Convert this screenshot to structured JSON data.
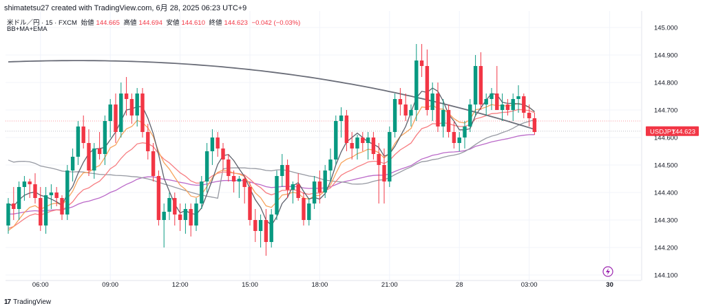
{
  "header": {
    "created_by": "shimatetsu27 created with TradingView.com, 6月 28, 2025 06:23 UTC+9"
  },
  "legend": {
    "symbol": "米ドル／円 · 15 · FXCM",
    "open_label": "始値",
    "open_value": "144.665",
    "high_label": "高値",
    "high_value": "144.694",
    "low_label": "安値",
    "low_value": "144.610",
    "close_label": "終値",
    "close_value": "144.623",
    "change": "−0.042 (−0.03%)",
    "indicator": "BB+MA+EMA"
  },
  "price_label": {
    "symbol": "USDJPY",
    "value": "144.623"
  },
  "footer": {
    "logo": "17",
    "brand": "TradingView"
  },
  "colors": {
    "up": "#089981",
    "down": "#f23645",
    "ma_dark": "#5d606b",
    "ma_gray": "#9598a1",
    "ema_orange": "#f7a35c",
    "ema_red": "#f77c80",
    "ema_purple": "#ba68c8",
    "grid": "#f0f3fa"
  },
  "chart_data": {
    "type": "candlestick",
    "ylim": [
      144.08,
      145.06
    ],
    "y_ticks": [
      "145.000",
      "144.900",
      "144.800",
      "144.700",
      "144.600",
      "144.500",
      "144.400",
      "144.300",
      "144.200",
      "144.100"
    ],
    "x_ticks": [
      "06:00",
      "09:00",
      "12:00",
      "15:00",
      "18:00",
      "21:00",
      "28",
      "03:00",
      "30"
    ],
    "candles": [
      [
        144.28,
        144.38,
        144.25,
        144.36
      ],
      [
        144.36,
        144.42,
        144.3,
        144.34
      ],
      [
        144.34,
        144.44,
        144.3,
        144.42
      ],
      [
        144.42,
        144.46,
        144.37,
        144.44
      ],
      [
        144.44,
        144.45,
        144.38,
        144.43
      ],
      [
        144.43,
        144.47,
        144.36,
        144.38
      ],
      [
        144.38,
        144.42,
        144.26,
        144.28
      ],
      [
        144.28,
        144.42,
        144.25,
        144.39
      ],
      [
        144.39,
        144.43,
        144.34,
        144.4
      ],
      [
        144.4,
        144.42,
        144.35,
        144.38
      ],
      [
        144.38,
        144.39,
        144.3,
        144.32
      ],
      [
        144.32,
        144.5,
        144.3,
        144.48
      ],
      [
        144.48,
        144.56,
        144.44,
        144.53
      ],
      [
        144.53,
        144.66,
        144.5,
        144.64
      ],
      [
        144.64,
        144.68,
        144.56,
        144.58
      ],
      [
        144.58,
        144.63,
        144.46,
        144.48
      ],
      [
        144.48,
        144.58,
        144.45,
        144.56
      ],
      [
        144.56,
        144.62,
        144.52,
        144.54
      ],
      [
        144.54,
        144.68,
        144.5,
        144.66
      ],
      [
        144.66,
        144.74,
        144.6,
        144.72
      ],
      [
        144.72,
        144.76,
        144.58,
        144.62
      ],
      [
        144.62,
        144.8,
        144.6,
        144.76
      ],
      [
        144.76,
        144.82,
        144.68,
        144.74
      ],
      [
        144.74,
        144.76,
        144.65,
        144.68
      ],
      [
        144.68,
        144.78,
        144.64,
        144.76
      ],
      [
        144.76,
        144.78,
        144.6,
        144.62
      ],
      [
        144.62,
        144.65,
        144.52,
        144.55
      ],
      [
        144.55,
        144.58,
        144.44,
        144.46
      ],
      [
        144.46,
        144.48,
        144.28,
        144.3
      ],
      [
        144.3,
        144.36,
        144.2,
        144.33
      ],
      [
        144.33,
        144.4,
        144.3,
        144.38
      ],
      [
        144.38,
        144.4,
        144.28,
        144.32
      ],
      [
        144.32,
        144.36,
        144.26,
        144.3
      ],
      [
        144.3,
        144.36,
        144.25,
        144.34
      ],
      [
        144.34,
        144.36,
        144.24,
        144.28
      ],
      [
        144.28,
        144.38,
        144.26,
        144.36
      ],
      [
        144.36,
        144.46,
        144.34,
        144.44
      ],
      [
        144.44,
        144.58,
        144.4,
        144.55
      ],
      [
        144.55,
        144.63,
        144.5,
        144.6
      ],
      [
        144.6,
        144.62,
        144.53,
        144.56
      ],
      [
        144.56,
        144.58,
        144.48,
        144.52
      ],
      [
        144.52,
        144.54,
        144.44,
        144.46
      ],
      [
        144.46,
        144.48,
        144.4,
        144.44
      ],
      [
        144.44,
        144.46,
        144.38,
        144.45
      ],
      [
        144.45,
        144.46,
        144.36,
        144.42
      ],
      [
        144.42,
        144.44,
        144.28,
        144.3
      ],
      [
        144.3,
        144.34,
        144.22,
        144.26
      ],
      [
        144.26,
        144.32,
        144.2,
        144.3
      ],
      [
        144.3,
        144.34,
        144.17,
        144.22
      ],
      [
        144.22,
        144.34,
        144.2,
        144.32
      ],
      [
        144.32,
        144.48,
        144.3,
        144.46
      ],
      [
        144.46,
        144.54,
        144.42,
        144.5
      ],
      [
        144.5,
        144.52,
        144.38,
        144.41
      ],
      [
        144.41,
        144.44,
        144.36,
        144.43
      ],
      [
        144.43,
        144.47,
        144.37,
        144.38
      ],
      [
        144.38,
        144.4,
        144.28,
        144.3
      ],
      [
        144.3,
        144.38,
        144.28,
        144.36
      ],
      [
        144.36,
        144.46,
        144.34,
        144.44
      ],
      [
        144.44,
        144.48,
        144.36,
        144.4
      ],
      [
        144.4,
        144.5,
        144.38,
        144.48
      ],
      [
        144.48,
        144.56,
        144.44,
        144.52
      ],
      [
        144.52,
        144.68,
        144.5,
        144.66
      ],
      [
        144.66,
        144.71,
        144.6,
        144.68
      ],
      [
        144.68,
        144.7,
        144.55,
        144.58
      ],
      [
        144.58,
        144.62,
        144.52,
        144.56
      ],
      [
        144.56,
        144.61,
        144.52,
        144.6
      ],
      [
        144.6,
        144.62,
        144.55,
        144.58
      ],
      [
        144.58,
        144.62,
        144.52,
        144.6
      ],
      [
        144.6,
        144.62,
        144.52,
        144.54
      ],
      [
        144.54,
        144.58,
        144.36,
        144.5
      ],
      [
        144.5,
        144.56,
        144.36,
        144.44
      ],
      [
        144.44,
        144.64,
        144.42,
        144.62
      ],
      [
        144.62,
        144.76,
        144.6,
        144.74
      ],
      [
        144.74,
        144.78,
        144.68,
        144.72
      ],
      [
        144.72,
        144.76,
        144.66,
        144.68
      ],
      [
        144.68,
        144.72,
        144.64,
        144.7
      ],
      [
        144.7,
        144.94,
        144.66,
        144.88
      ],
      [
        144.88,
        144.94,
        144.82,
        144.86
      ],
      [
        144.86,
        144.92,
        144.68,
        144.7
      ],
      [
        144.7,
        144.8,
        144.66,
        144.76
      ],
      [
        144.76,
        144.8,
        144.62,
        144.64
      ],
      [
        144.64,
        144.74,
        144.6,
        144.7
      ],
      [
        144.7,
        144.72,
        144.6,
        144.62
      ],
      [
        144.62,
        144.66,
        144.56,
        144.58
      ],
      [
        144.58,
        144.62,
        144.55,
        144.6
      ],
      [
        144.6,
        144.66,
        144.56,
        144.64
      ],
      [
        144.64,
        144.74,
        144.62,
        144.72
      ],
      [
        144.72,
        144.9,
        144.68,
        144.86
      ],
      [
        144.86,
        144.91,
        144.7,
        144.72
      ],
      [
        144.72,
        144.76,
        144.68,
        144.74
      ],
      [
        144.74,
        144.78,
        144.7,
        144.76
      ],
      [
        144.76,
        144.86,
        144.7,
        144.7
      ],
      [
        144.7,
        144.76,
        144.66,
        144.72
      ],
      [
        144.72,
        144.74,
        144.68,
        144.7
      ],
      [
        144.7,
        144.76,
        144.66,
        144.74
      ],
      [
        144.74,
        144.79,
        144.69,
        144.75
      ],
      [
        144.75,
        144.76,
        144.67,
        144.69
      ],
      [
        144.69,
        144.72,
        144.64,
        144.67
      ],
      [
        144.67,
        144.69,
        144.61,
        144.62
      ]
    ],
    "price_line": 144.623,
    "reference_line": 144.66
  }
}
